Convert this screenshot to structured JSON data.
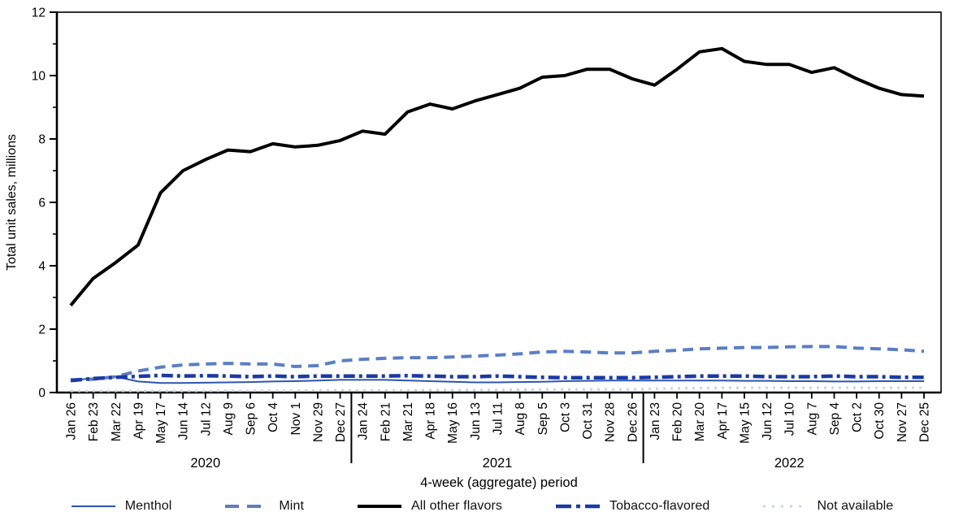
{
  "chart": {
    "y_axis": {
      "label": "Total unit sales, millions",
      "min": 0,
      "max": 12,
      "major_step": 2,
      "minor_step": 1,
      "major_tick_labels": [
        "0",
        "2",
        "4",
        "6",
        "8",
        "10",
        "12"
      ]
    },
    "x_axis": {
      "label": "4-week (aggregate) period"
    },
    "year_groups": [
      {
        "label": "2020",
        "start": 0,
        "end": 12
      },
      {
        "label": "2021",
        "start": 13,
        "end": 25
      },
      {
        "label": "2022",
        "start": 26,
        "end": 38
      }
    ]
  },
  "chart_data": {
    "type": "line",
    "title": "",
    "xlabel": "4-week (aggregate) period",
    "ylabel": "Total unit sales, millions",
    "ylim": [
      0,
      12
    ],
    "grid": false,
    "legend_position": "bottom",
    "x": [
      "Jan 26",
      "Feb 23",
      "Mar 22",
      "Apr 19",
      "May 17",
      "Jun 14",
      "Jul 12",
      "Aug 9",
      "Sep 6",
      "Oct 4",
      "Nov 1",
      "Nov 29",
      "Dec 27",
      "Jan 24",
      "Feb 21",
      "Mar 21",
      "Apr 18",
      "May 16",
      "Jun 13",
      "Jul 11",
      "Aug 8",
      "Sep 5",
      "Oct 3",
      "Oct 31",
      "Nov 28",
      "Dec 26",
      "Jan 23",
      "Feb 20",
      "Mar 20",
      "Apr 17",
      "May 15",
      "Jun 12",
      "Jul 10",
      "Aug 7",
      "Sep 4",
      "Oct 2",
      "Oct 30",
      "Nov 27",
      "Dec 25"
    ],
    "series": [
      {
        "name": "Menthol",
        "color": "#2d55ab",
        "width": 2,
        "dash": "solid",
        "values": [
          0.38,
          0.45,
          0.5,
          0.35,
          0.3,
          0.3,
          0.31,
          0.32,
          0.33,
          0.35,
          0.36,
          0.38,
          0.4,
          0.4,
          0.4,
          0.38,
          0.36,
          0.34,
          0.32,
          0.32,
          0.33,
          0.34,
          0.36,
          0.37,
          0.38,
          0.38,
          0.38,
          0.38,
          0.38,
          0.38,
          0.37,
          0.37,
          0.36,
          0.36,
          0.35,
          0.35,
          0.36,
          0.36,
          0.36
        ]
      },
      {
        "name": "Mint",
        "color": "#5a7ec6",
        "width": 4,
        "dash": "dashed",
        "values": [
          0.4,
          0.42,
          0.5,
          0.68,
          0.8,
          0.87,
          0.9,
          0.92,
          0.9,
          0.9,
          0.82,
          0.85,
          1.0,
          1.05,
          1.08,
          1.1,
          1.1,
          1.12,
          1.15,
          1.18,
          1.22,
          1.28,
          1.3,
          1.28,
          1.25,
          1.25,
          1.3,
          1.33,
          1.38,
          1.4,
          1.42,
          1.42,
          1.44,
          1.45,
          1.45,
          1.4,
          1.38,
          1.35,
          1.3
        ]
      },
      {
        "name": "All other flavors",
        "color": "#000000",
        "width": 4,
        "dash": "solid",
        "values": [
          2.75,
          3.6,
          4.1,
          4.65,
          6.3,
          7.0,
          7.35,
          7.65,
          7.6,
          7.85,
          7.75,
          7.8,
          7.95,
          8.25,
          8.15,
          8.85,
          9.1,
          8.95,
          9.2,
          9.4,
          9.6,
          9.95,
          10.0,
          10.2,
          10.2,
          9.9,
          9.7,
          10.2,
          10.75,
          10.85,
          10.45,
          10.35,
          10.35,
          10.1,
          10.25,
          9.9,
          9.6,
          9.4,
          9.35
        ]
      },
      {
        "name": "Tobacco-flavored",
        "color": "#1a3aa5",
        "width": 4.5,
        "dash": "dashdot",
        "values": [
          0.38,
          0.44,
          0.48,
          0.51,
          0.54,
          0.52,
          0.53,
          0.52,
          0.5,
          0.52,
          0.5,
          0.52,
          0.52,
          0.52,
          0.52,
          0.53,
          0.52,
          0.5,
          0.5,
          0.52,
          0.5,
          0.48,
          0.47,
          0.47,
          0.47,
          0.47,
          0.48,
          0.5,
          0.52,
          0.52,
          0.52,
          0.5,
          0.5,
          0.5,
          0.52,
          0.5,
          0.5,
          0.48,
          0.48
        ]
      },
      {
        "name": "Not available",
        "color": "#c8d3ee",
        "width": 3,
        "dash": "dotted",
        "values": [
          0.05,
          0.05,
          0.05,
          0.05,
          0.05,
          0.05,
          0.05,
          0.06,
          0.06,
          0.06,
          0.06,
          0.07,
          0.07,
          0.07,
          0.07,
          0.07,
          0.08,
          0.08,
          0.08,
          0.08,
          0.09,
          0.1,
          0.1,
          0.1,
          0.1,
          0.1,
          0.12,
          0.13,
          0.14,
          0.15,
          0.15,
          0.15,
          0.15,
          0.15,
          0.15,
          0.15,
          0.15,
          0.15,
          0.15
        ]
      }
    ]
  }
}
